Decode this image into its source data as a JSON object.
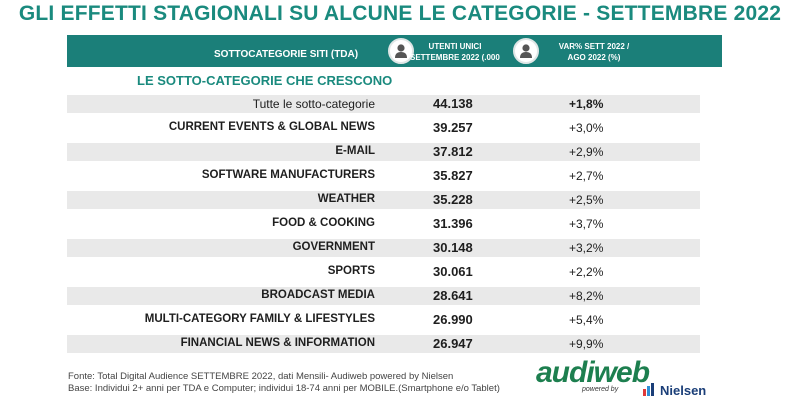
{
  "title": "GLI EFFETTI STAGIONALI SU ALCUNE LE CATEGORIE - SETTEMBRE 2022",
  "header": {
    "label": "SOTTOCATEGORIE SITI  (TDA)",
    "col_users_line1": "UTENTI UNICI",
    "col_users_line2": "SETTEMBRE 2022 (.000)",
    "col_var_line1": "VAR% SETT 2022 /",
    "col_var_line2": "AGO 2022 (%)",
    "icons": [
      "user-icon",
      "user-icon"
    ]
  },
  "section_title": "LE SOTTO-CATEGORIE CHE CRESCONO",
  "rows": [
    {
      "category": "Tutte le sotto-categorie",
      "users": "44.138",
      "var": "+1,8%"
    },
    {
      "category": "CURRENT EVENTS & GLOBAL NEWS",
      "users": "39.257",
      "var": "+3,0%"
    },
    {
      "category": "E-MAIL",
      "users": "37.812",
      "var": "+2,9%"
    },
    {
      "category": "SOFTWARE MANUFACTURERS",
      "users": "35.827",
      "var": "+2,7%"
    },
    {
      "category": "WEATHER",
      "users": "35.228",
      "var": "+2,5%"
    },
    {
      "category": "FOOD & COOKING",
      "users": "31.396",
      "var": "+3,7%"
    },
    {
      "category": "GOVERNMENT",
      "users": "30.148",
      "var": "+3,2%"
    },
    {
      "category": "SPORTS",
      "users": "30.061",
      "var": "+2,2%"
    },
    {
      "category": "BROADCAST MEDIA",
      "users": "28.641",
      "var": "+8,2%"
    },
    {
      "category": "MULTI-CATEGORY FAMILY & LIFESTYLES",
      "users": "26.990",
      "var": "+5,4%"
    },
    {
      "category": "FINANCIAL NEWS & INFORMATION",
      "users": "26.947",
      "var": "+9,9%"
    }
  ],
  "footnotes": {
    "source": "Fonte: Total Digital Audience SETTEMBRE 2022, dati Mensili- Audiweb powered by Nielsen",
    "base": "Base:  Individui 2+ anni per TDA e Computer; individui 18-74 anni per MOBILE.(Smartphone e/o Tablet)"
  },
  "logo": {
    "brand": "audiweb",
    "powered": "powered by",
    "partner": "Nielsen"
  },
  "colors": {
    "accent": "#1a8a7e",
    "header_band": "#1b7f79",
    "row_shade": "#e9e9e9",
    "logo_green": "#1d7f4f",
    "nielsen_blue": "#1a3e78"
  }
}
